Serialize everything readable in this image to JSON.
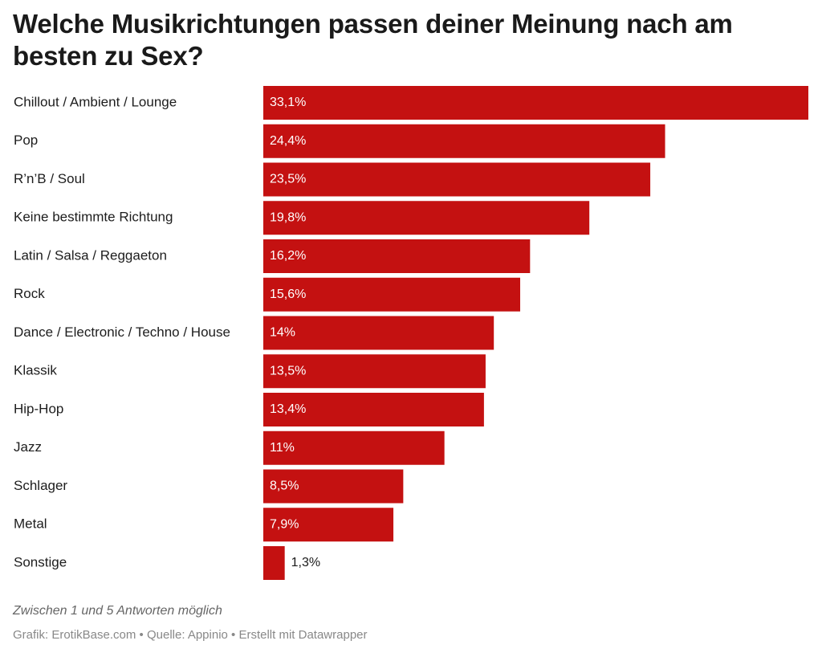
{
  "colors": {
    "bar": "#c41111",
    "label_inside": "#ffffff",
    "label_outside": "#1a1a1a"
  },
  "chart_data": {
    "type": "bar",
    "orientation": "horizontal",
    "title": "Welche Musikrichtungen passen deiner Meinung nach am besten zu Sex?",
    "categories": [
      "Chillout / Ambient / Lounge",
      "Pop",
      "R’n’B / Soul",
      "Keine bestimmte Richtung",
      "Latin / Salsa / Reggaeton",
      "Rock",
      "Dance / Electronic / Techno / House",
      "Klassik",
      "Hip-Hop",
      "Jazz",
      "Schlager",
      "Metal",
      "Sonstige"
    ],
    "values": [
      33.1,
      24.4,
      23.5,
      19.8,
      16.2,
      15.6,
      14,
      13.5,
      13.4,
      11,
      8.5,
      7.9,
      1.3
    ],
    "value_labels": [
      "33,1%",
      "24,4%",
      "23,5%",
      "19,8%",
      "16,2%",
      "15,6%",
      "14%",
      "13,5%",
      "13,4%",
      "11%",
      "8,5%",
      "7,9%",
      "1,3%"
    ],
    "xlim": [
      0,
      33.1
    ],
    "xlabel": "",
    "ylabel": "",
    "grid": false,
    "legend": "none"
  },
  "notes": "Zwischen 1 und 5 Antworten möglich",
  "footer": "Grafik: ErotikBase.com • Quelle: Appinio • Erstellt mit Datawrapper"
}
